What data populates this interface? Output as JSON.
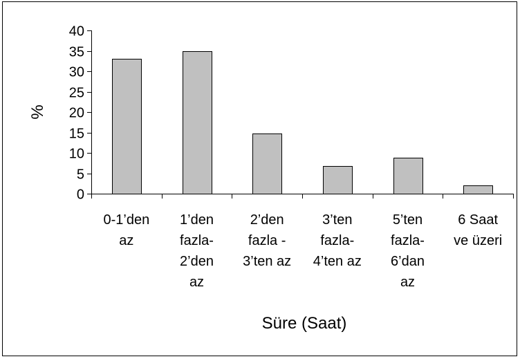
{
  "chart_data": {
    "type": "bar",
    "categories": [
      [
        "0-1’den",
        "az"
      ],
      [
        "1’den",
        "fazla-",
        "2’den",
        "az"
      ],
      [
        "2’den",
        "fazla -",
        "3’ten az"
      ],
      [
        "3’ten",
        "fazla-",
        "4’ten az"
      ],
      [
        "5’ten",
        "fazla-",
        "6’dan",
        "az"
      ],
      [
        "6 Saat",
        "ve üzeri"
      ]
    ],
    "values": [
      33,
      35,
      14.7,
      6.8,
      8.8,
      2
    ],
    "title": "",
    "xlabel": "Süre (Saat)",
    "ylabel": "%",
    "ylim": [
      0,
      40
    ],
    "yticks": [
      "0",
      "5",
      "10",
      "15",
      "20",
      "25",
      "30",
      "35",
      "40"
    ],
    "grid": false,
    "legend": "none",
    "colors": {
      "bar_fill": "#c0c0c0",
      "bar_stroke": "#000000",
      "axis": "#000000",
      "frame": "#000000",
      "background": "#ffffff"
    }
  }
}
